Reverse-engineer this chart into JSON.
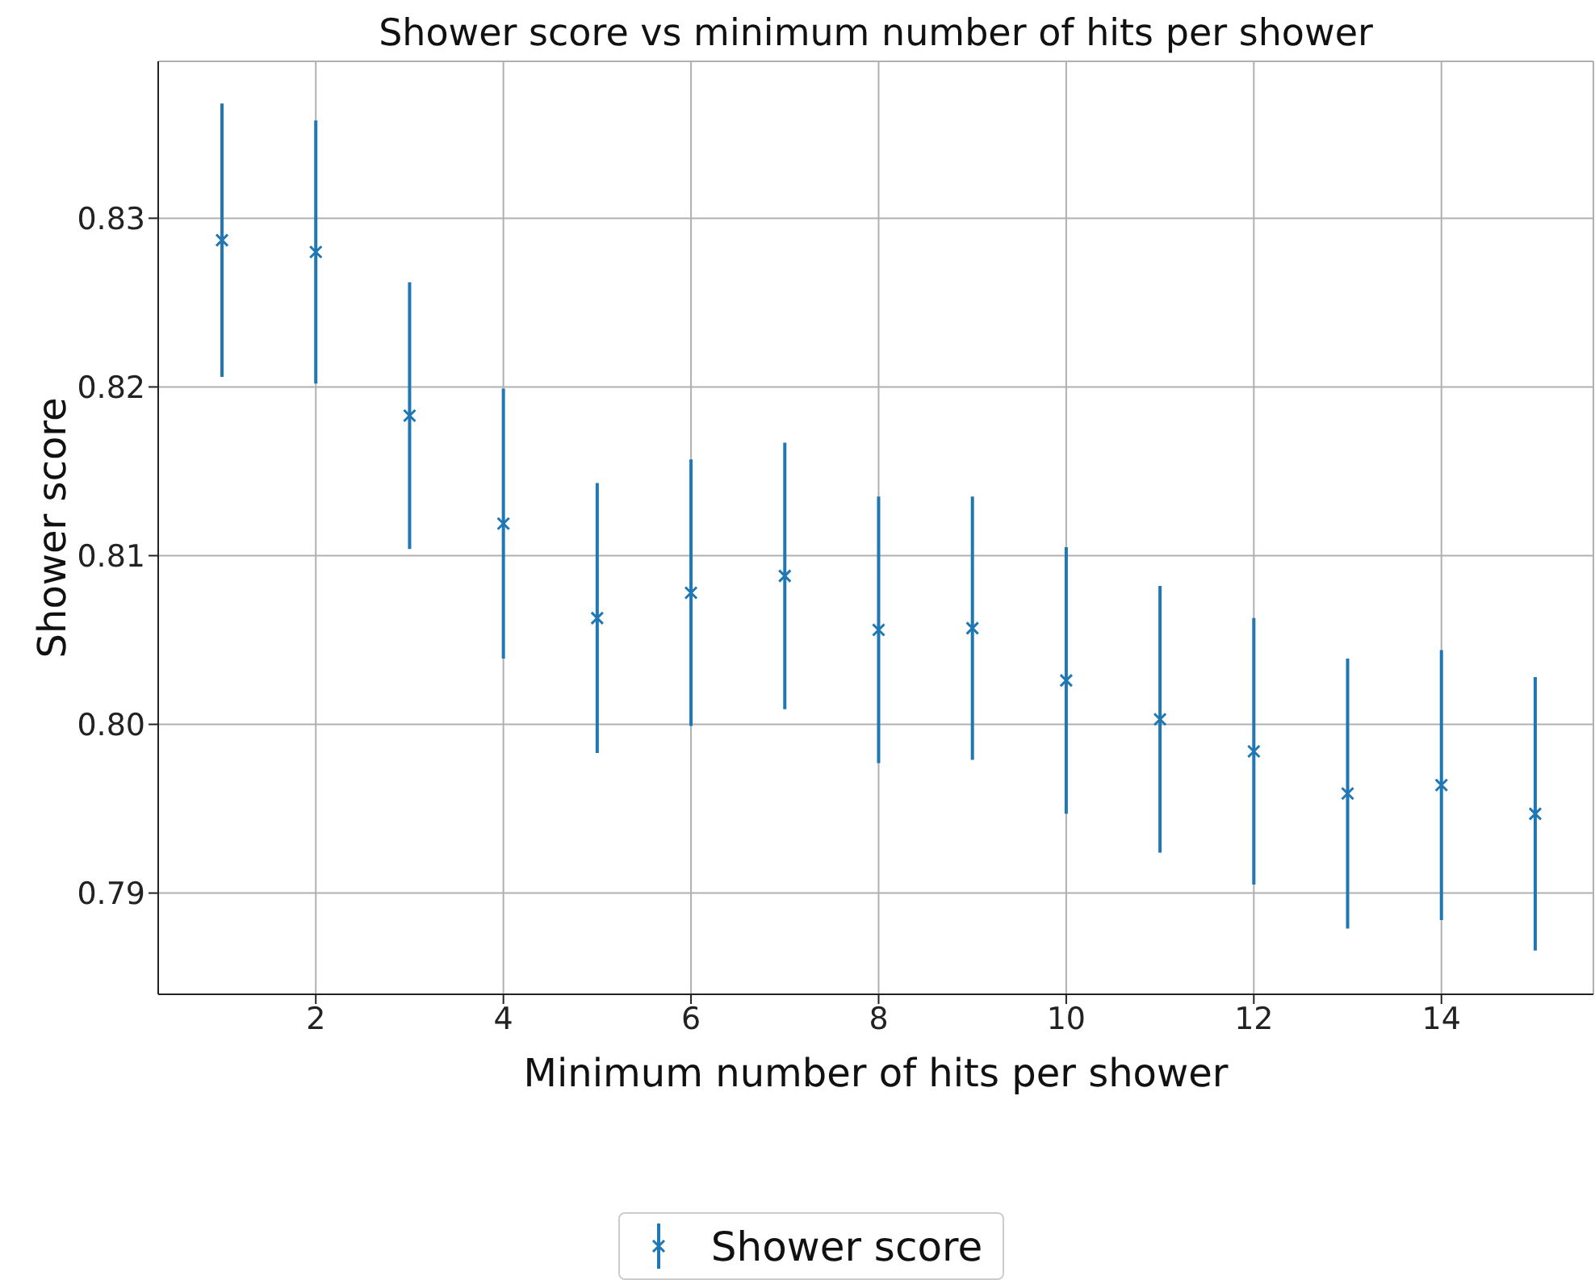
{
  "chart_data": {
    "type": "scatter",
    "title": "Shower score vs minimum number of hits per shower",
    "xlabel": "Minimum number of hits per shower",
    "ylabel": "Shower score",
    "x": [
      1,
      2,
      3,
      4,
      5,
      6,
      7,
      8,
      9,
      10,
      11,
      12,
      13,
      14,
      15
    ],
    "series": [
      {
        "name": "Shower score",
        "color": "#1f77b4",
        "values": [
          0.8287,
          0.828,
          0.8183,
          0.8119,
          0.8063,
          0.8078,
          0.8088,
          0.8056,
          0.8057,
          0.8026,
          0.8003,
          0.7984,
          0.7959,
          0.7964,
          0.7947
        ],
        "errors": [
          0.0081,
          0.0078,
          0.0079,
          0.008,
          0.008,
          0.0079,
          0.0079,
          0.0079,
          0.0078,
          0.0079,
          0.0079,
          0.0079,
          0.008,
          0.008,
          0.0081
        ]
      }
    ],
    "xlim": [
      0.32,
      15.62
    ],
    "xticks": [
      2,
      4,
      6,
      8,
      10,
      12,
      14
    ],
    "ylim": [
      0.784,
      0.8393
    ],
    "yticks": [
      0.79,
      {
        "value": 0.8,
        "label": "0.80"
      },
      0.81,
      0.82,
      0.83
    ],
    "grid": true,
    "legend": "bottom",
    "marker": "cross"
  }
}
